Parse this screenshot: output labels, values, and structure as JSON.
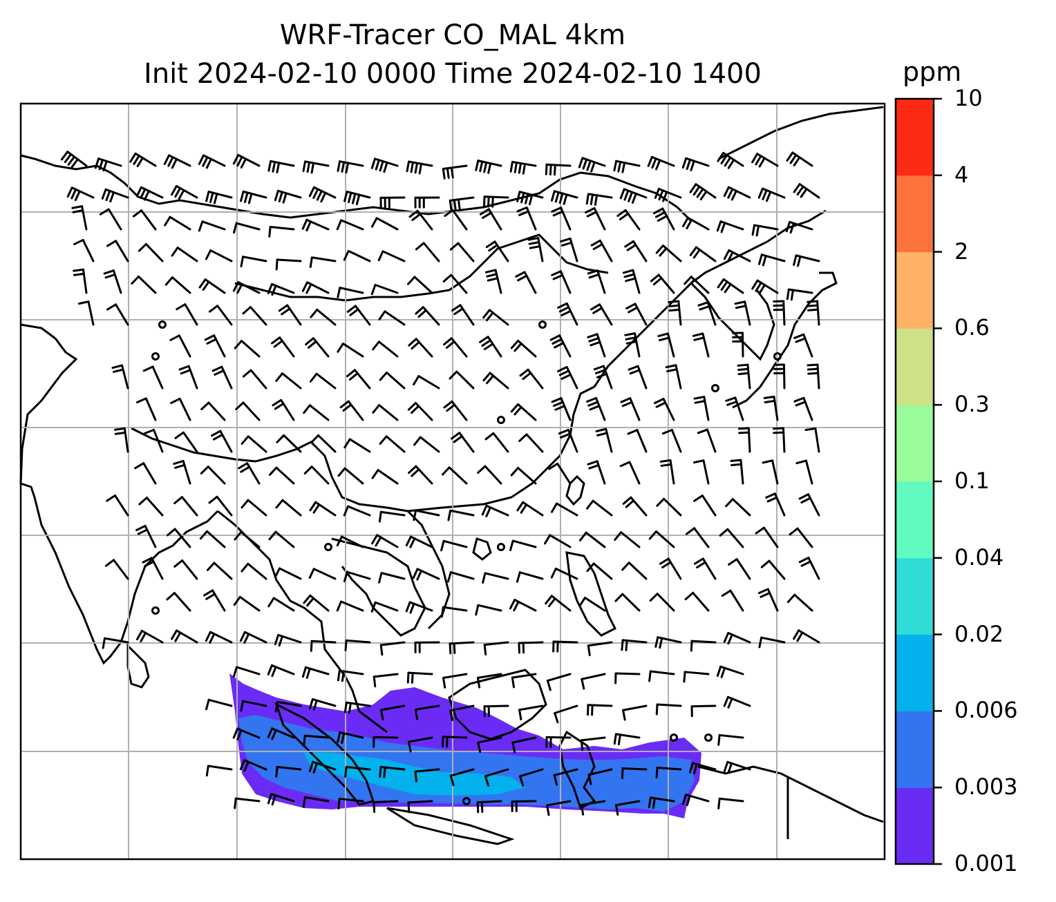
{
  "title": {
    "line1": "WRF-Tracer CO_MAL 4km",
    "line2": "Init 2024-02-10 0000 Time 2024-02-10 1400"
  },
  "colorbar": {
    "unit": "ppm",
    "tick_labels": [
      "0.001",
      "0.003",
      "0.006",
      "0.02",
      "0.04",
      "0.1",
      "0.3",
      "0.6",
      "2",
      "4",
      "10"
    ],
    "colors": [
      "#6a2cf5",
      "#3375f0",
      "#03b1ec",
      "#2fdcd6",
      "#62fbbf",
      "#9afb9b",
      "#cee187",
      "#fdb266",
      "#fd723c",
      "#fe2b14"
    ]
  },
  "map": {
    "gridline_color": "#b0b0b0",
    "coastline_color": "#000000",
    "tracer_plume_levels": [
      "0.001",
      "0.003",
      "0.006"
    ]
  }
}
